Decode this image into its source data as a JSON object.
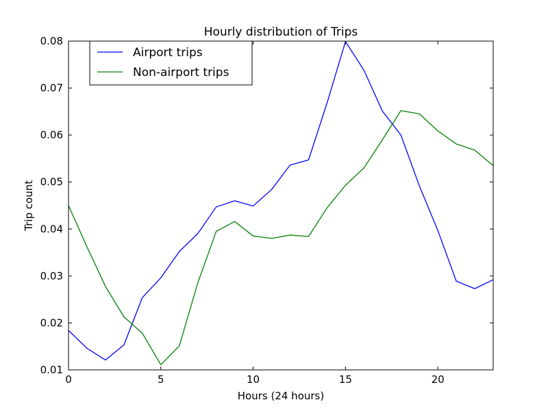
{
  "chart_data": {
    "type": "line",
    "title": "Hourly distribution of Trips",
    "xlabel": "Hours (24 hours)",
    "ylabel": "Trip count",
    "xlim": [
      0,
      23
    ],
    "ylim": [
      0.01,
      0.08
    ],
    "xticks": [
      0,
      5,
      10,
      15,
      20
    ],
    "xtick_labels": [
      "0",
      "5",
      "10",
      "15",
      "20"
    ],
    "yticks": [
      0.01,
      0.02,
      0.03,
      0.04,
      0.05,
      0.06,
      0.07,
      0.08
    ],
    "ytick_labels": [
      "0.01",
      "0.02",
      "0.03",
      "0.04",
      "0.05",
      "0.06",
      "0.07",
      "0.08"
    ],
    "grid": false,
    "legend_position": "top-left",
    "x": [
      0,
      1,
      2,
      3,
      4,
      5,
      6,
      7,
      8,
      9,
      10,
      11,
      12,
      13,
      14,
      15,
      16,
      17,
      18,
      19,
      20,
      21,
      22,
      23
    ],
    "series": [
      {
        "name": "Airport trips",
        "color": "#0000ff",
        "values": [
          0.0184,
          0.0146,
          0.0121,
          0.0153,
          0.0254,
          0.0296,
          0.0352,
          0.039,
          0.0447,
          0.046,
          0.0449,
          0.0484,
          0.0536,
          0.0547,
          0.0668,
          0.0799,
          0.0738,
          0.0651,
          0.06,
          0.0492,
          0.0397,
          0.0289,
          0.0273,
          0.0292
        ]
      },
      {
        "name": "Non-airport trips",
        "color": "#008000",
        "values": [
          0.045,
          0.0362,
          0.0278,
          0.0213,
          0.0178,
          0.0111,
          0.0151,
          0.0285,
          0.0395,
          0.0416,
          0.0385,
          0.038,
          0.0387,
          0.0384,
          0.0445,
          0.0493,
          0.053,
          0.059,
          0.0652,
          0.0645,
          0.0609,
          0.0581,
          0.0568,
          0.0535
        ]
      }
    ]
  }
}
